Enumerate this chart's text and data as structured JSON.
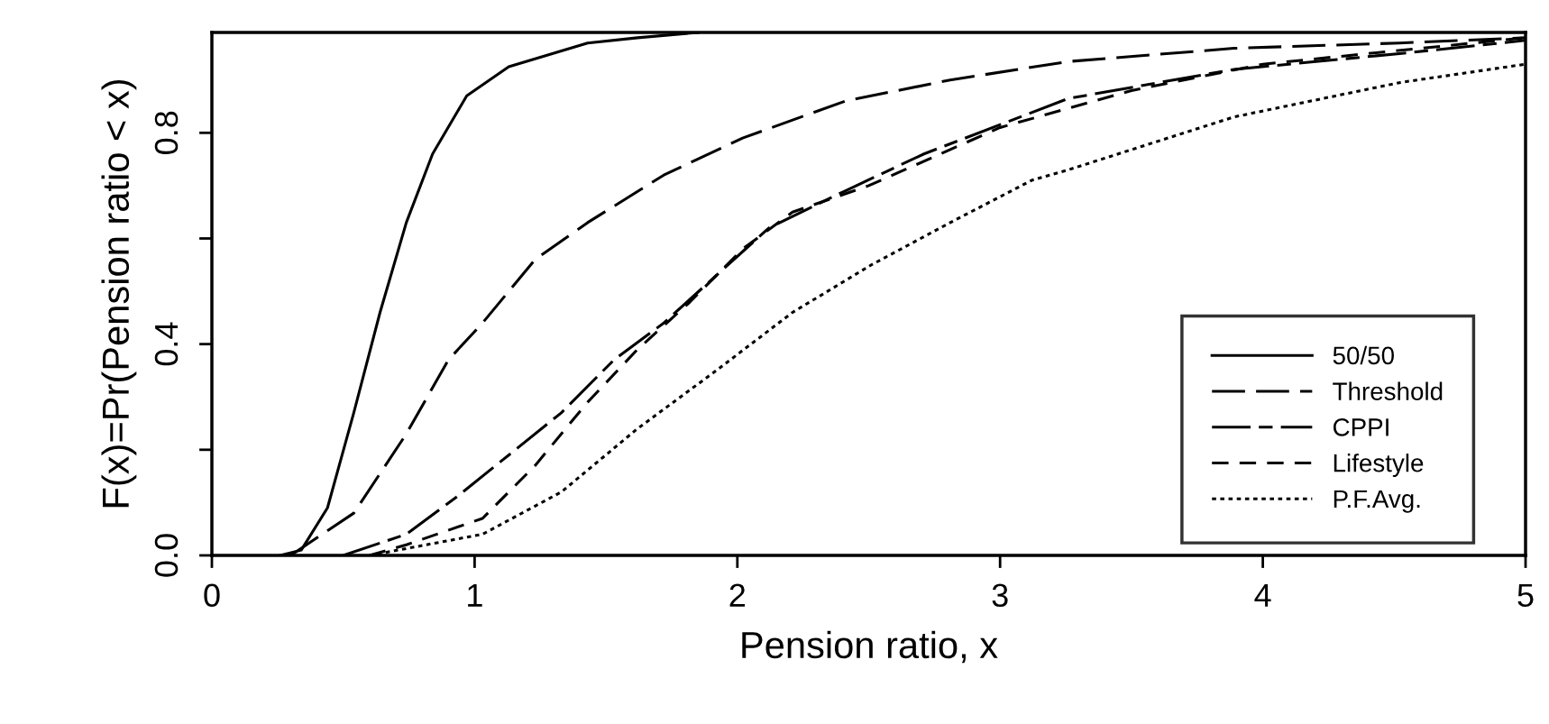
{
  "chart_data": {
    "type": "line",
    "xlabel": "Pension ratio, x",
    "ylabel": "F(x)=Pr(Pension ratio < x)",
    "xlim": [
      0,
      5
    ],
    "xticks": [
      0,
      1,
      2,
      3,
      4,
      5
    ],
    "ylim": [
      0,
      0.99
    ],
    "yticks": [
      {
        "value": 0,
        "label": "0.0"
      },
      {
        "value": 0.2,
        "label": null
      },
      {
        "value": 0.4,
        "label": "0.4"
      },
      {
        "value": 0.6,
        "label": null
      },
      {
        "value": 0.8,
        "label": "0.8"
      }
    ],
    "grid": false,
    "legend": "bottom right",
    "series": [
      {
        "name": "50/50",
        "color": "#000000",
        "line_style": "solid",
        "x": [
          0.26,
          0.34,
          0.44,
          0.54,
          0.64,
          0.74,
          0.84,
          0.97,
          1.13,
          1.43,
          1.62,
          1.85
        ],
        "values": [
          0,
          0.01,
          0.09,
          0.27,
          0.46,
          0.63,
          0.76,
          0.87,
          0.925,
          0.97,
          0.98,
          0.99
        ]
      },
      {
        "name": "Threshold",
        "color": "#000000",
        "line_style": "longdash",
        "x": [
          0.3,
          0.54,
          0.74,
          0.9,
          1.03,
          1.23,
          1.43,
          1.72,
          2.02,
          2.41,
          2.81,
          3.26,
          3.89,
          4.52,
          5.0
        ],
        "values": [
          0,
          0.08,
          0.23,
          0.37,
          0.44,
          0.56,
          0.63,
          0.72,
          0.79,
          0.86,
          0.9,
          0.935,
          0.96,
          0.97,
          0.98
        ]
      },
      {
        "name": "CPPI",
        "color": "#000000",
        "line_style": "dashdot",
        "x": [
          0.5,
          0.74,
          0.93,
          1.13,
          1.33,
          1.53,
          1.72,
          1.92,
          2.12,
          2.41,
          2.71,
          3.26,
          3.89,
          4.52,
          5.0
        ],
        "values": [
          0,
          0.04,
          0.11,
          0.19,
          0.27,
          0.37,
          0.44,
          0.53,
          0.62,
          0.69,
          0.76,
          0.865,
          0.92,
          0.95,
          0.975
        ]
      },
      {
        "name": "Lifestyle",
        "color": "#000000",
        "line_style": "dashed",
        "x": [
          0.6,
          0.74,
          1.03,
          1.23,
          1.43,
          1.62,
          1.82,
          2.02,
          2.21,
          2.5,
          3.0,
          3.5,
          4.0,
          4.5,
          5.0
        ],
        "values": [
          0,
          0.02,
          0.07,
          0.17,
          0.29,
          0.39,
          0.48,
          0.58,
          0.65,
          0.7,
          0.81,
          0.88,
          0.93,
          0.955,
          0.98
        ]
      },
      {
        "name": "P.F.Avg.",
        "color": "#000000",
        "line_style": "dotted",
        "x": [
          0.6,
          1.03,
          1.33,
          1.62,
          1.92,
          2.21,
          2.51,
          2.81,
          3.12,
          3.26,
          3.89,
          4.52,
          5.0
        ],
        "values": [
          0,
          0.04,
          0.12,
          0.24,
          0.35,
          0.46,
          0.55,
          0.63,
          0.71,
          0.73,
          0.83,
          0.895,
          0.93
        ]
      }
    ]
  }
}
